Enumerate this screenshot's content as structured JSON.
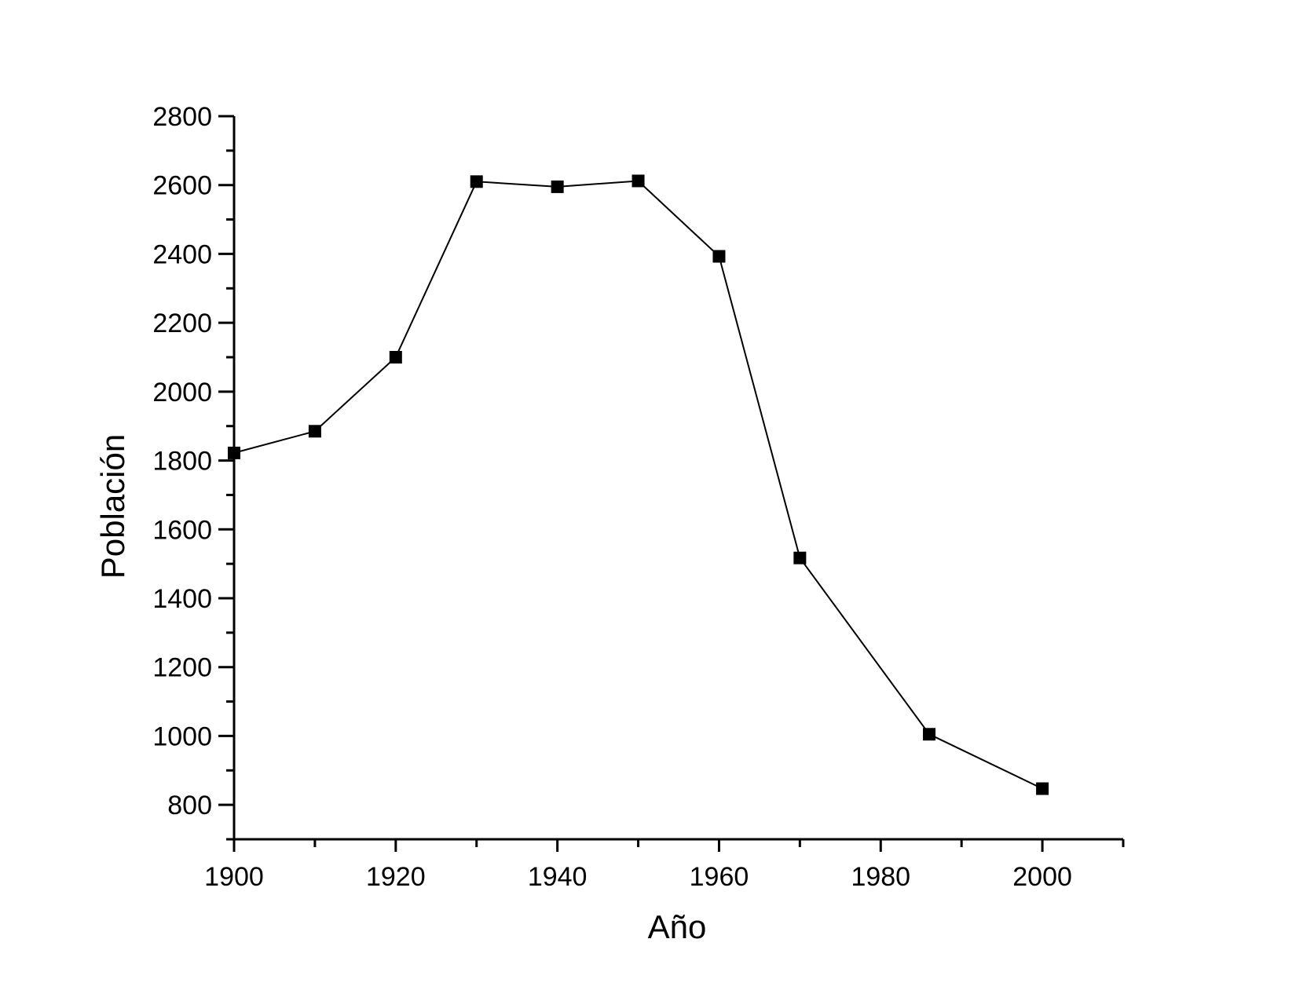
{
  "chart_data": {
    "type": "line",
    "title": "",
    "xlabel": "Año",
    "ylabel": "Población",
    "xlim": [
      1900,
      2010
    ],
    "ylim": [
      700,
      2800
    ],
    "x_ticks": [
      1900,
      1920,
      1940,
      1960,
      1980,
      2000
    ],
    "x_minor_step": 10,
    "y_ticks": [
      800,
      1000,
      1200,
      1400,
      1600,
      1800,
      2000,
      2200,
      2400,
      2600,
      2800
    ],
    "y_minor_step": 100,
    "grid": false,
    "marker": "square",
    "color": "#000000",
    "series": [
      {
        "x": [
          1900,
          1910,
          1920,
          1930,
          1940,
          1950,
          1960,
          1970,
          1986,
          2000
        ],
        "values": [
          1822,
          1885,
          2100,
          2610,
          2595,
          2612,
          2393,
          1517,
          1005,
          847
        ]
      }
    ]
  }
}
